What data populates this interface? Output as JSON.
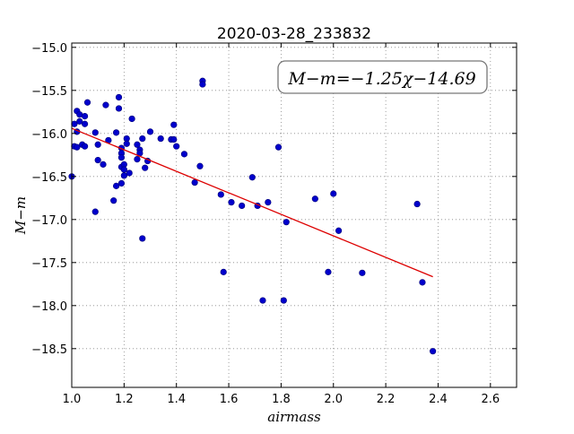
{
  "chart_data": {
    "type": "scatter",
    "title": "2020-03-28_233832",
    "xlabel": "airmass",
    "ylabel": "M−m",
    "xlim": [
      1.0,
      2.7
    ],
    "ylim": [
      -18.95,
      -14.95
    ],
    "x_ticks": [
      1.0,
      1.2,
      1.4,
      1.6,
      1.8,
      2.0,
      2.2,
      2.4,
      2.6
    ],
    "x_tick_labels": [
      "1.0",
      "1.2",
      "1.4",
      "1.6",
      "1.8",
      "2.0",
      "2.2",
      "2.4",
      "2.6"
    ],
    "y_ticks": [
      -15.0,
      -15.5,
      -16.0,
      -16.5,
      -17.0,
      -17.5,
      -18.0,
      -18.5
    ],
    "y_tick_labels": [
      "−15.0",
      "−15.5",
      "−16.0",
      "−16.5",
      "−17.0",
      "−17.5",
      "−18.0",
      "−18.5"
    ],
    "grid": true,
    "annotation": "M−m=−1.25χ−14.69",
    "fit": {
      "slope": -1.25,
      "intercept": -14.69,
      "x_range": [
        1.0,
        2.38
      ]
    },
    "colors": {
      "points": "#0000cc",
      "points_edge": "#000077",
      "fit": "#dd0000",
      "grid": "#888888"
    },
    "points": [
      [
        1.0,
        -16.5
      ],
      [
        1.01,
        -15.89
      ],
      [
        1.01,
        -16.15
      ],
      [
        1.02,
        -16.16
      ],
      [
        1.02,
        -15.74
      ],
      [
        1.02,
        -15.98
      ],
      [
        1.03,
        -15.86
      ],
      [
        1.03,
        -15.78
      ],
      [
        1.04,
        -16.13
      ],
      [
        1.05,
        -15.8
      ],
      [
        1.05,
        -15.89
      ],
      [
        1.05,
        -16.15
      ],
      [
        1.06,
        -15.64
      ],
      [
        1.09,
        -15.99
      ],
      [
        1.09,
        -16.91
      ],
      [
        1.1,
        -16.13
      ],
      [
        1.1,
        -16.31
      ],
      [
        1.12,
        -16.36
      ],
      [
        1.13,
        -15.67
      ],
      [
        1.14,
        -16.08
      ],
      [
        1.16,
        -16.78
      ],
      [
        1.17,
        -15.99
      ],
      [
        1.17,
        -16.61
      ],
      [
        1.18,
        -15.58
      ],
      [
        1.18,
        -15.71
      ],
      [
        1.19,
        -16.17
      ],
      [
        1.19,
        -16.23
      ],
      [
        1.19,
        -16.28
      ],
      [
        1.19,
        -16.39
      ],
      [
        1.19,
        -16.58
      ],
      [
        1.2,
        -16.36
      ],
      [
        1.2,
        -16.42
      ],
      [
        1.2,
        -16.49
      ],
      [
        1.21,
        -16.06
      ],
      [
        1.21,
        -16.12
      ],
      [
        1.22,
        -16.46
      ],
      [
        1.23,
        -15.83
      ],
      [
        1.25,
        -16.13
      ],
      [
        1.25,
        -16.3
      ],
      [
        1.26,
        -16.19
      ],
      [
        1.26,
        -16.23
      ],
      [
        1.27,
        -17.22
      ],
      [
        1.27,
        -16.06
      ],
      [
        1.28,
        -16.4
      ],
      [
        1.29,
        -16.32
      ],
      [
        1.3,
        -15.98
      ],
      [
        1.34,
        -16.06
      ],
      [
        1.38,
        -16.07
      ],
      [
        1.39,
        -15.9
      ],
      [
        1.39,
        -16.07
      ],
      [
        1.4,
        -16.15
      ],
      [
        1.43,
        -16.24
      ],
      [
        1.47,
        -16.57
      ],
      [
        1.49,
        -16.38
      ],
      [
        1.5,
        -15.39
      ],
      [
        1.5,
        -15.43
      ],
      [
        1.57,
        -16.71
      ],
      [
        1.58,
        -17.61
      ],
      [
        1.61,
        -16.8
      ],
      [
        1.65,
        -16.84
      ],
      [
        1.69,
        -16.51
      ],
      [
        1.71,
        -16.84
      ],
      [
        1.73,
        -17.94
      ],
      [
        1.75,
        -16.8
      ],
      [
        1.79,
        -16.16
      ],
      [
        1.81,
        -17.94
      ],
      [
        1.82,
        -17.03
      ],
      [
        1.93,
        -16.76
      ],
      [
        1.98,
        -17.61
      ],
      [
        2.0,
        -16.7
      ],
      [
        2.02,
        -17.13
      ],
      [
        2.11,
        -17.62
      ],
      [
        2.32,
        -16.82
      ],
      [
        2.34,
        -17.73
      ],
      [
        2.38,
        -18.53
      ]
    ]
  }
}
